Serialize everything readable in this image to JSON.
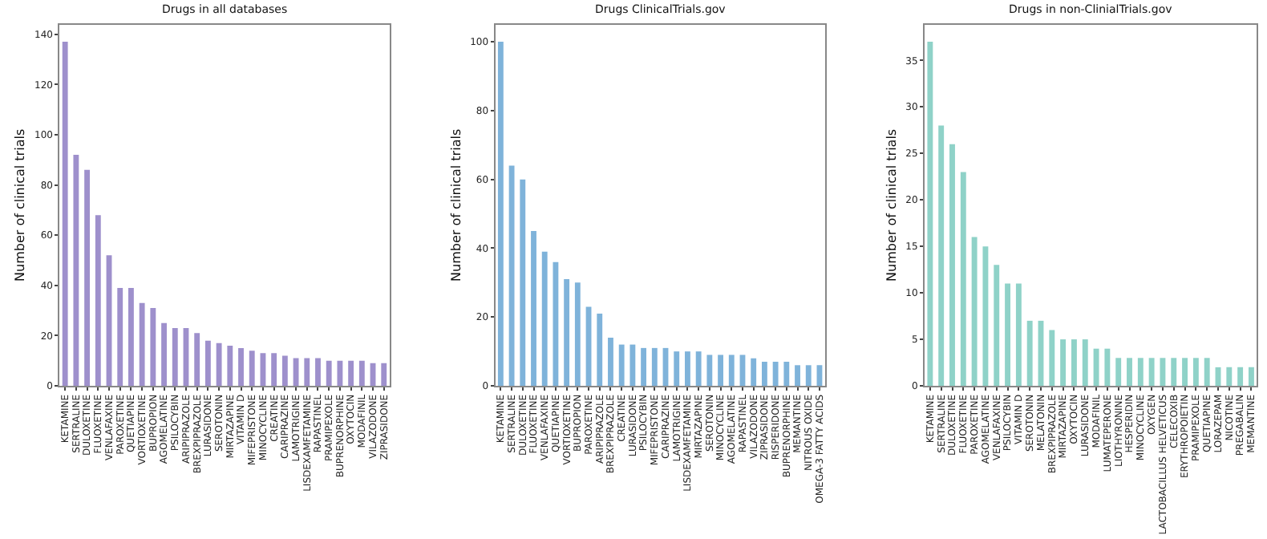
{
  "chart_data": [
    {
      "type": "bar",
      "title": "Drugs in all databases",
      "ylabel": "Number of clinical trials",
      "color": "#9e90cc",
      "ylim": [
        0,
        143.85
      ],
      "yticks": [
        0,
        20,
        40,
        60,
        80,
        100,
        120,
        140
      ],
      "categories": [
        "KETAMINE",
        "SERTRALINE",
        "DULOXETINE",
        "FLUOXETINE",
        "VENLAFAXINE",
        "PAROXETINE",
        "QUETIAPINE",
        "VORTIOXETINE",
        "BUPROPION",
        "AGOMELATINE",
        "PSILOCYBIN",
        "ARIPIPRAZOLE",
        "BREXPIPRAZOLE",
        "LURASIDONE",
        "SEROTONIN",
        "MIRTAZAPINE",
        "VITAMIN D",
        "MIFEPRISTONE",
        "MINOCYCLINE",
        "CREATINE",
        "CARIPRAZINE",
        "LAMOTRIGINE",
        "LISDEXAMFETAMINE",
        "RAPASTINEL",
        "PRAMIPEXOLE",
        "BUPRENORPHINE",
        "OXYTOCIN",
        "MODAFINIL",
        "VILAZODONE",
        "ZIPRASIDONE"
      ],
      "values": [
        137,
        92,
        86,
        68,
        52,
        39,
        39,
        33,
        31,
        25,
        23,
        23,
        21,
        18,
        17,
        16,
        15,
        14,
        13,
        13,
        12,
        11,
        11,
        11,
        10,
        10,
        10,
        10,
        9,
        9
      ]
    },
    {
      "type": "bar",
      "title": "Drugs ClinicalTrials.gov",
      "ylabel": "Number of clinical trials",
      "color": "#7fb3da",
      "ylim": [
        0,
        105
      ],
      "yticks": [
        0,
        20,
        40,
        60,
        80,
        100
      ],
      "categories": [
        "KETAMINE",
        "SERTRALINE",
        "DULOXETINE",
        "FLUOXETINE",
        "VENLAFAXINE",
        "QUETIAPINE",
        "VORTIOXETINE",
        "BUPROPION",
        "PAROXETINE",
        "ARIPIPRAZOLE",
        "BREXPIPRAZOLE",
        "CREATINE",
        "LURASIDONE",
        "PSILOCYBIN",
        "MIFEPRISTONE",
        "CARIPRAZINE",
        "LAMOTRIGINE",
        "LISDEXAMFETAMINE",
        "MIRTAZAPINE",
        "SEROTONIN",
        "MINOCYCLINE",
        "AGOMELATINE",
        "RAPASTINEL",
        "VILAZODONE",
        "ZIPRASIDONE",
        "RISPERIDONE",
        "BUPRENORPHINE",
        "MEMANTINE",
        "NITROUS OXIDE",
        "OMEGA-3 FATTY ACIDS"
      ],
      "values": [
        100,
        64,
        60,
        45,
        39,
        36,
        31,
        30,
        23,
        21,
        14,
        12,
        12,
        11,
        11,
        11,
        10,
        10,
        10,
        9,
        9,
        9,
        9,
        8,
        7,
        7,
        7,
        6,
        6,
        6
      ]
    },
    {
      "type": "bar",
      "title": "Drugs in non-ClinialTrials.gov",
      "ylabel": "Number of clinical trials",
      "color": "#8fd2c8",
      "ylim": [
        0,
        38.85
      ],
      "yticks": [
        0,
        5,
        10,
        15,
        20,
        25,
        30,
        35
      ],
      "categories": [
        "KETAMINE",
        "SERTRALINE",
        "DULOXETINE",
        "FLUOXETINE",
        "PAROXETINE",
        "AGOMELATINE",
        "VENLAFAXINE",
        "PSILOCYBIN",
        "VITAMIN D",
        "SEROTONIN",
        "MELATONIN",
        "BREXPIPRAZOLE",
        "MIRTAZAPINE",
        "OXYTOCIN",
        "LURASIDONE",
        "MODAFINIL",
        "LUMATEPERONE",
        "LIOTHYRONINE",
        "HESPERIDIN",
        "MINOCYCLINE",
        "OXYGEN",
        "LACTOBACILLUS HELVETICUS",
        "CELECOXIB",
        "ERYTHROPOIETIN",
        "PRAMIPEXOLE",
        "QUETIAPINE",
        "LORAZEPAM",
        "NICOTINE",
        "PREGABALIN",
        "MEMANTINE"
      ],
      "values": [
        37,
        28,
        26,
        23,
        16,
        15,
        13,
        11,
        11,
        7,
        7,
        6,
        5,
        5,
        5,
        4,
        4,
        3,
        3,
        3,
        3,
        3,
        3,
        3,
        3,
        3,
        2,
        2,
        2,
        2
      ]
    }
  ]
}
